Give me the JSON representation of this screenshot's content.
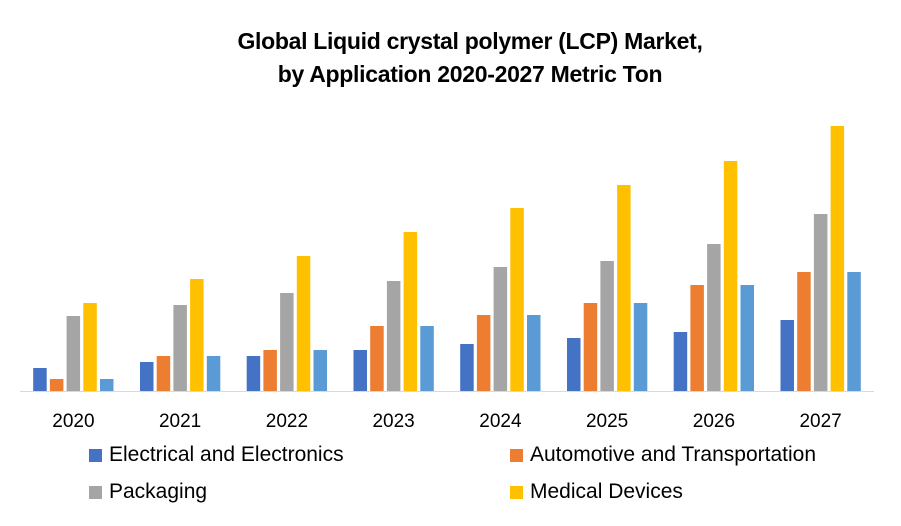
{
  "chart_data": {
    "type": "bar",
    "title": "Global Liquid crystal polymer (LCP) Market, by Application 2020-2027 Metric Ton",
    "title_lines": [
      "Global Liquid crystal polymer (LCP) Market,",
      "by Application 2020-2027 Metric Ton"
    ],
    "xlabel": "",
    "ylabel": "",
    "categories": [
      "2020",
      "2021",
      "2022",
      "2023",
      "2024",
      "2025",
      "2026",
      "2027"
    ],
    "ylim": [
      0,
      280
    ],
    "grid": false,
    "legend_position": "bottom",
    "series": [
      {
        "name": "Electrical and Electronics",
        "color": "#4472C4",
        "in_legend": true,
        "values": [
          23,
          29,
          35,
          41,
          47,
          53,
          59,
          71
        ]
      },
      {
        "name": "Automotive and Transportation",
        "color": "#ED7D31",
        "in_legend": true,
        "values": [
          12,
          35,
          41,
          65,
          76,
          88,
          106,
          119
        ]
      },
      {
        "name": "Packaging",
        "color": "#A5A5A5",
        "in_legend": true,
        "values": [
          75,
          86,
          98,
          110,
          124,
          130,
          147,
          177
        ]
      },
      {
        "name": "Medical Devices",
        "color": "#FFC000",
        "in_legend": true,
        "values": [
          88,
          112,
          135,
          159,
          183,
          206,
          230,
          265
        ]
      },
      {
        "name": "",
        "color": "#5B9BD5",
        "in_legend": false,
        "values": [
          12,
          35,
          41,
          65,
          76,
          88,
          106,
          119
        ]
      }
    ]
  }
}
